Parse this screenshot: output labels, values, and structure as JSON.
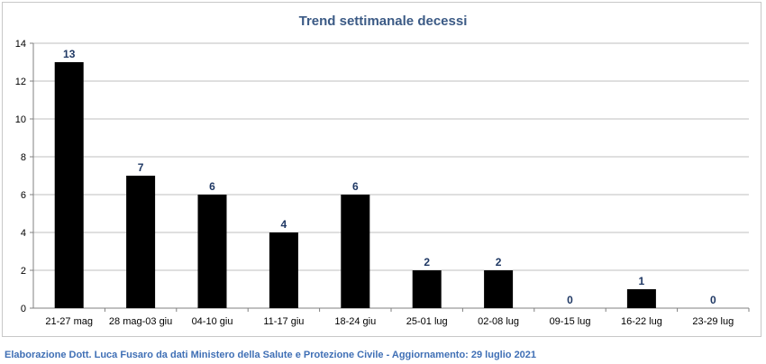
{
  "chart_data": {
    "type": "bar",
    "title": "Trend settimanale decessi",
    "xlabel": "",
    "ylabel": "",
    "categories": [
      "21-27 mag",
      "28 mag-03 giu",
      "04-10 giu",
      "11-17 giu",
      "18-24 giu",
      "25-01 lug",
      "02-08 lug",
      "09-15 lug",
      "16-22 lug",
      "23-29 lug"
    ],
    "values": [
      13,
      7,
      6,
      4,
      6,
      2,
      2,
      0,
      1,
      0
    ],
    "ylim": [
      0,
      14
    ],
    "yticks": [
      0,
      2,
      4,
      6,
      8,
      10,
      12,
      14
    ],
    "grid": true,
    "legend": "none",
    "bar_color": "#000000",
    "label_color": "#1f3864"
  },
  "footer": "Elaborazione Dott. Luca Fusaro da dati Ministero della Salute e Protezione Civile - Aggiornamento: 29 luglio 2021"
}
